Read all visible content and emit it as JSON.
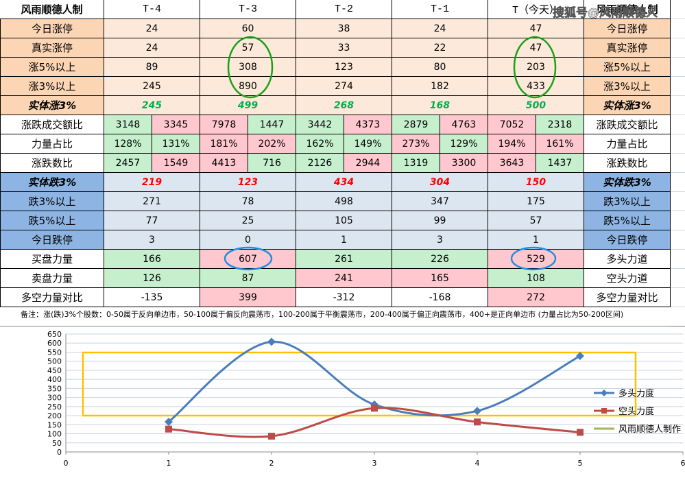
{
  "watermark": "搜狐号@风雨顺德人",
  "table": {
    "header": [
      "风雨顺德人制",
      "T-4",
      "T-3",
      "T-2",
      "T-1",
      "T（今天）",
      "风雨顺德人制"
    ],
    "rows": [
      {
        "label": "今日涨停",
        "values": [
          24,
          60,
          38,
          24,
          47
        ],
        "right_label": "今日涨停",
        "label_color": "#fcd5b4",
        "cell_colors": [
          "#fde9d9",
          "#fde9d9",
          "#fde9d9",
          "#fde9d9",
          "#fde9d9"
        ]
      },
      {
        "label": "真实涨停",
        "values": [
          24,
          57,
          33,
          22,
          47
        ],
        "right_label": "真实涨停",
        "label_color": "#fcd5b4",
        "cell_colors": [
          "#fde9d9",
          "#fde9d9",
          "#fde9d9",
          "#fde9d9",
          "#fde9d9"
        ]
      },
      {
        "label": "涨5%以上",
        "values": [
          89,
          308,
          123,
          80,
          203
        ],
        "right_label": "涨5%以上",
        "label_color": "#fcd5b4",
        "cell_colors": [
          "#fde9d9",
          "#fde9d9",
          "#fde9d9",
          "#fde9d9",
          "#fde9d9"
        ]
      },
      {
        "label": "涨3%以上",
        "values": [
          245,
          890,
          274,
          182,
          433
        ],
        "right_label": "涨3%以上",
        "label_color": "#fcd5b4",
        "cell_colors": [
          "#fde9d9",
          "#fde9d9",
          "#fde9d9",
          "#fde9d9",
          "#fde9d9"
        ]
      },
      {
        "label": "实体涨3%",
        "values": [
          245,
          499,
          268,
          168,
          500
        ],
        "right_label": "实体涨3%",
        "label_color": "#fcd5b4",
        "text_color": "#00b050",
        "cell_colors": [
          "#fde9d9",
          "#fde9d9",
          "#fde9d9",
          "#fde9d9",
          "#fde9d9"
        ]
      },
      {
        "label": "涨跌成交额比",
        "values": [
          3148,
          3345,
          7978,
          1447,
          3442,
          4373,
          2879,
          4763,
          7052,
          2318
        ],
        "right_label": "涨跌成交额比",
        "label_color": "#ffffff",
        "cell_colors": [
          "#c6efce",
          "#ffc7ce",
          "#ffc7ce",
          "#c6efce",
          "#c6efce",
          "#ffc7ce",
          "#c6efce",
          "#ffc7ce",
          "#ffc7ce",
          "#c6efce"
        ]
      },
      {
        "label": "力量占比",
        "values": [
          "128%",
          "131%",
          "181%",
          "202%",
          "162%",
          "149%",
          "273%",
          "129%",
          "194%",
          "161%"
        ],
        "right_label": "力量占比",
        "label_color": "#ffffff",
        "cell_colors": [
          "#c6efce",
          "#c6efce",
          "#ffc7ce",
          "#ffc7ce",
          "#c6efce",
          "#c6efce",
          "#ffc7ce",
          "#c6efce",
          "#ffc7ce",
          "#ffc7ce"
        ]
      },
      {
        "label": "涨跌数比",
        "values": [
          2457,
          1549,
          4413,
          716,
          2126,
          2944,
          1319,
          3300,
          3643,
          1437
        ],
        "right_label": "涨跌数比",
        "label_color": "#ffffff",
        "cell_colors": [
          "#c6efce",
          "#ffc7ce",
          "#ffc7ce",
          "#c6efce",
          "#c6efce",
          "#ffc7ce",
          "#c6efce",
          "#ffc7ce",
          "#ffc7ce",
          "#c6efce"
        ]
      },
      {
        "label": "实体跌3%",
        "values": [
          219,
          123,
          434,
          304,
          150
        ],
        "right_label": "实体跌3%",
        "label_color": "#8db4e2",
        "text_color": "#ff0000",
        "cell_colors": [
          "#dce6f1",
          "#dce6f1",
          "#dce6f1",
          "#dce6f1",
          "#dce6f1"
        ]
      },
      {
        "label": "跌3%以上",
        "values": [
          271,
          78,
          498,
          347,
          175
        ],
        "right_label": "跌3%以上",
        "label_color": "#8db4e2",
        "cell_colors": [
          "#dce6f1",
          "#dce6f1",
          "#dce6f1",
          "#dce6f1",
          "#dce6f1"
        ]
      },
      {
        "label": "跌5%以上",
        "values": [
          77,
          25,
          105,
          99,
          57
        ],
        "right_label": "跌5%以上",
        "label_color": "#8db4e2",
        "cell_colors": [
          "#dce6f1",
          "#dce6f1",
          "#dce6f1",
          "#dce6f1",
          "#dce6f1"
        ]
      },
      {
        "label": "今日跌停",
        "values": [
          3,
          0,
          1,
          3,
          1
        ],
        "right_label": "今日跌停",
        "label_color": "#8db4e2",
        "cell_colors": [
          "#dce6f1",
          "#dce6f1",
          "#dce6f1",
          "#dce6f1",
          "#dce6f1"
        ]
      },
      {
        "label": "买盘力量",
        "values": [
          166,
          607,
          261,
          226,
          529
        ],
        "right_label": "多头力道",
        "label_color": "#ffffff",
        "cell_colors": [
          "#c6efce",
          "#ffc7ce",
          "#c6efce",
          "#c6efce",
          "#ffc7ce"
        ]
      },
      {
        "label": "卖盘力量",
        "values": [
          126,
          87,
          241,
          165,
          108
        ],
        "right_label": "空头力道",
        "label_color": "#ffffff",
        "cell_colors": [
          "#c6efce",
          "#c6efce",
          "#ffc7ce",
          "#ffc7ce",
          "#c6efce"
        ]
      },
      {
        "label": "多空力量对比",
        "values": [
          -135,
          399,
          -312,
          -168,
          272
        ],
        "right_label": "多空力量对比",
        "label_color": "#ffffff",
        "cell_colors": [
          "#ffffff",
          "#ffc7ce",
          "#ffffff",
          "#ffffff",
          "#ffc7ce"
        ]
      }
    ]
  },
  "note": "备注：涨(跌)3%个股数：0-50属于反向单边市，50-100属于偏反向震荡市，100-200属于平衡震荡市，200-400属于偏正向震荡市，400+是正向单边市 (力量占比为50-200区间)",
  "chart_data": {
    "type": "line",
    "x": [
      1,
      2,
      3,
      4,
      5
    ],
    "series": [
      {
        "name": "多头力度",
        "color": "#4a7ebb",
        "marker": "diamond",
        "values": [
          166,
          607,
          261,
          226,
          529
        ]
      },
      {
        "name": "空头力度",
        "color": "#be4b48",
        "marker": "square",
        "values": [
          126,
          87,
          241,
          165,
          108
        ]
      },
      {
        "name": "风雨顺德人制作",
        "color": "#98b954",
        "marker": "none",
        "values": [
          null,
          null,
          null,
          null,
          null
        ]
      }
    ],
    "xlim": [
      0,
      6
    ],
    "xticks": [
      0,
      1,
      2,
      3,
      4,
      5,
      6
    ],
    "ylim": [
      0,
      650
    ],
    "yticks": [
      0,
      50,
      100,
      150,
      200,
      250,
      300,
      350,
      400,
      450,
      500,
      550,
      600,
      650
    ],
    "grid": true,
    "smooth": true
  }
}
